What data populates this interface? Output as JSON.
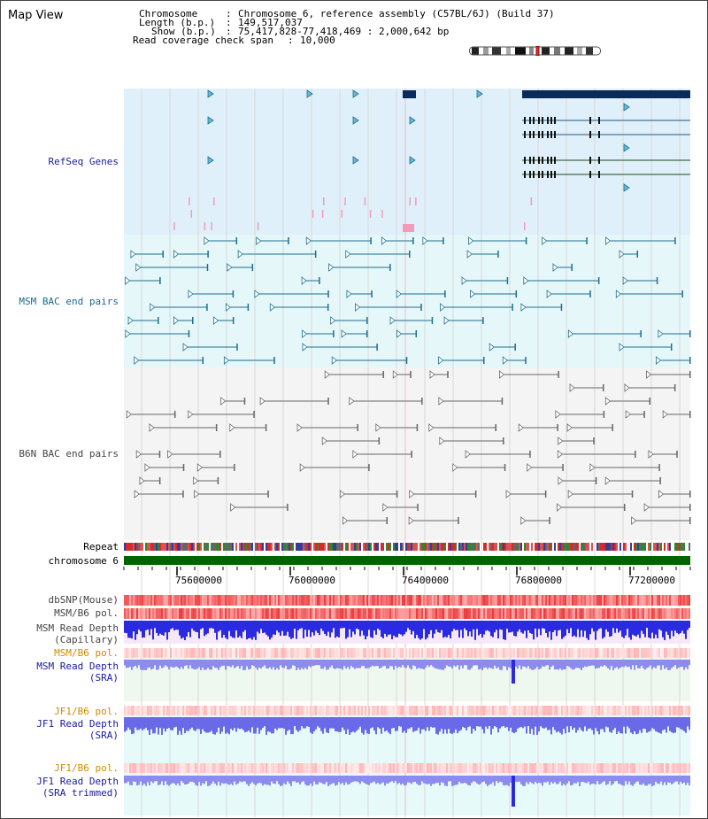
{
  "view_title": "Map View",
  "header": {
    "chromosome_key": "Chromosome",
    "chromosome_val": "Chromosome 6, reference assembly (C57BL/6J) (Build 37)",
    "length_key": "Length (b.p.)",
    "length_val": "149,517,037",
    "show_key": "Show (b.p.)",
    "show_val": "75,417,828-77,418,469 : 2,000,642 bp",
    "coverage_key": "Read coverage check span",
    "coverage_val": "10,000",
    "separator": ":"
  },
  "tracks": {
    "refseq": "RefSeq Genes",
    "msm_bac": "MSM BAC end pairs",
    "b6n_bac": "B6N BAC end pairs",
    "repeat": "Repeat",
    "chromosome": "chromosome 6",
    "dbsnp": "dbSNP(Mouse)",
    "msm_b6_pol_1": "MSM/B6 pol.",
    "msm_read_depth_cap": "MSM Read Depth",
    "msm_read_depth_cap_sub": "(Capillary)",
    "msm_b6_pol_2": "MSM/B6 pol.",
    "msm_read_depth_sra": "MSM Read Depth",
    "msm_read_depth_sra_sub": "(SRA)",
    "jf1_b6_pol_1": "JF1/B6 pol.",
    "jf1_read_depth_sra": "JF1 Read Depth",
    "jf1_read_depth_sra_sub": "(SRA)",
    "jf1_b6_pol_2": "JF1/B6 pol.",
    "jf1_read_depth_trim": "JF1 Read Depth",
    "jf1_read_depth_trim_sub": "(SRA trimmed)"
  },
  "axis": {
    "ticks": [
      "75600000",
      "76000000",
      "76400000",
      "76800000",
      "77200000"
    ],
    "tick_positions_bp": [
      75600000,
      76000000,
      76400000,
      76800000,
      77200000
    ],
    "start_bp": 75417828,
    "end_bp": 77418469
  },
  "colors": {
    "refseq_bg": "#dff0fa",
    "msm_bg": "#e6f7fa",
    "b6n_bg": "#f4f4f4",
    "gene_navy": "#0a2a5a",
    "msm_feature": "#1e6e8e",
    "b6n_feature": "#666666",
    "chromosome_bar": "#006400",
    "snp_red": "#f26060",
    "depth_blue": "#2a2ae0",
    "depth_light": "#8c8cf0"
  }
}
